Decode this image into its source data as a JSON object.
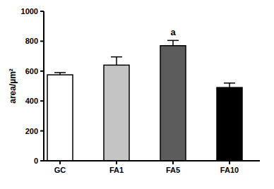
{
  "chart_data": {
    "type": "bar",
    "y_label": "area/µm²",
    "categories": [
      "GC",
      "FA1",
      "FA5",
      "FA10"
    ],
    "values": [
      575,
      640,
      770,
      490
    ],
    "errors": [
      15,
      55,
      35,
      30
    ],
    "colors": [
      "#ffffff",
      "#c4c4c4",
      "#5c5c5c",
      "#000000"
    ],
    "ylim": [
      0,
      1000
    ],
    "yticks": [
      0,
      200,
      400,
      600,
      800,
      1000
    ],
    "grid": false,
    "annotations": [
      {
        "text": "a",
        "category": "FA5"
      }
    ]
  }
}
